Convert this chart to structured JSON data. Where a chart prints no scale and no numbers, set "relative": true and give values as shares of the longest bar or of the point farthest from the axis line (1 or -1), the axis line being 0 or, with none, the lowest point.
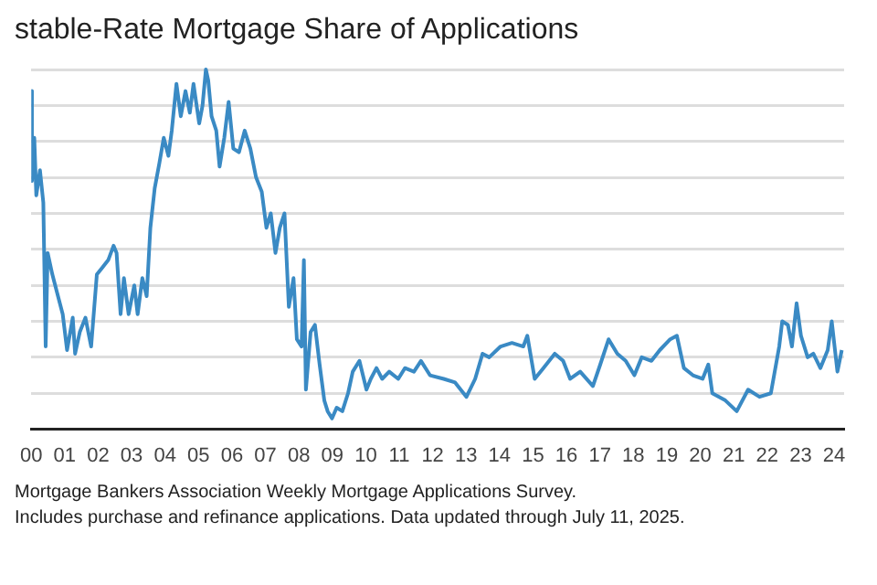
{
  "chart_data": {
    "type": "line",
    "title": "stable-Rate Mortgage Share of Applications",
    "relative": true,
    "grid": "y",
    "marker": "none",
    "line_style": "solid",
    "xlim": [
      2000,
      2024.3
    ],
    "xticks": [
      {
        "value": 2000,
        "label": "00"
      },
      {
        "value": 2001,
        "label": "01"
      },
      {
        "value": 2002,
        "label": "02"
      },
      {
        "value": 2003,
        "label": "03"
      },
      {
        "value": 2004,
        "label": "04"
      },
      {
        "value": 2005,
        "label": "05"
      },
      {
        "value": 2006,
        "label": "06"
      },
      {
        "value": 2007,
        "label": "07"
      },
      {
        "value": 2008,
        "label": "08"
      },
      {
        "value": 2009,
        "label": "09"
      },
      {
        "value": 2010,
        "label": "10"
      },
      {
        "value": 2011,
        "label": "11"
      },
      {
        "value": 2012,
        "label": "12"
      },
      {
        "value": 2013,
        "label": "13"
      },
      {
        "value": 2014,
        "label": "14"
      },
      {
        "value": 2015,
        "label": "15"
      },
      {
        "value": 2016,
        "label": "16"
      },
      {
        "value": 2017,
        "label": "17"
      },
      {
        "value": 2018,
        "label": "18"
      },
      {
        "value": 2019,
        "label": "19"
      },
      {
        "value": 2020,
        "label": "20"
      },
      {
        "value": 2021,
        "label": "21"
      },
      {
        "value": 2022,
        "label": "22"
      },
      {
        "value": 2023,
        "label": "23"
      },
      {
        "value": 2024,
        "label": "24"
      }
    ],
    "x": [
      2000.0,
      2000.02,
      2000.09,
      2000.15,
      2000.26,
      2000.36,
      2000.43,
      2000.49,
      2000.63,
      2000.77,
      2000.94,
      2001.07,
      2001.24,
      2001.31,
      2001.45,
      2001.62,
      2001.79,
      2001.96,
      2002.13,
      2002.3,
      2002.46,
      2002.55,
      2002.67,
      2002.77,
      2002.91,
      2003.08,
      2003.18,
      2003.32,
      2003.45,
      2003.56,
      2003.69,
      2003.83,
      2003.96,
      2004.1,
      2004.2,
      2004.34,
      2004.47,
      2004.61,
      2004.74,
      2004.85,
      2005.02,
      2005.12,
      2005.22,
      2005.29,
      2005.39,
      2005.53,
      2005.63,
      2005.77,
      2005.9,
      2006.04,
      2006.21,
      2006.38,
      2006.55,
      2006.72,
      2006.89,
      2007.03,
      2007.16,
      2007.3,
      2007.43,
      2007.57,
      2007.7,
      2007.84,
      2007.94,
      2008.08,
      2008.15,
      2008.21,
      2008.35,
      2008.48,
      2008.62,
      2008.76,
      2008.86,
      2008.99,
      2009.13,
      2009.3,
      2009.47,
      2009.61,
      2009.81,
      2010.02,
      2010.15,
      2010.32,
      2010.49,
      2010.7,
      2010.97,
      2011.17,
      2011.44,
      2011.65,
      2011.92,
      2012.33,
      2012.67,
      2013.01,
      2013.27,
      2013.49,
      2013.69,
      2014.03,
      2014.37,
      2014.71,
      2014.83,
      2015.05,
      2015.31,
      2015.65,
      2015.9,
      2016.11,
      2016.41,
      2016.79,
      2017.01,
      2017.26,
      2017.52,
      2017.77,
      2018.03,
      2018.25,
      2018.54,
      2018.79,
      2019.1,
      2019.3,
      2019.51,
      2019.78,
      2020.07,
      2020.24,
      2020.36,
      2020.75,
      2021.09,
      2021.43,
      2021.77,
      2022.11,
      2022.36,
      2022.45,
      2022.62,
      2022.74,
      2022.88,
      2023.01,
      2023.21,
      2023.38,
      2023.59,
      2023.81,
      2023.93,
      2024.1,
      2024.23
    ],
    "series": [
      {
        "color": "#3a8ac4",
        "values": [
          0.94,
          0.69,
          0.81,
          0.65,
          0.72,
          0.63,
          0.23,
          0.49,
          0.43,
          0.38,
          0.32,
          0.22,
          0.31,
          0.21,
          0.27,
          0.31,
          0.23,
          0.43,
          0.45,
          0.47,
          0.51,
          0.49,
          0.32,
          0.42,
          0.32,
          0.4,
          0.32,
          0.42,
          0.37,
          0.56,
          0.67,
          0.74,
          0.81,
          0.76,
          0.83,
          0.96,
          0.87,
          0.94,
          0.88,
          0.96,
          0.85,
          0.9,
          1.0,
          0.97,
          0.87,
          0.83,
          0.73,
          0.81,
          0.91,
          0.78,
          0.77,
          0.83,
          0.78,
          0.7,
          0.66,
          0.56,
          0.6,
          0.49,
          0.56,
          0.6,
          0.34,
          0.42,
          0.25,
          0.23,
          0.47,
          0.11,
          0.27,
          0.29,
          0.18,
          0.08,
          0.05,
          0.03,
          0.06,
          0.05,
          0.1,
          0.16,
          0.19,
          0.11,
          0.14,
          0.17,
          0.14,
          0.16,
          0.14,
          0.17,
          0.16,
          0.19,
          0.15,
          0.14,
          0.13,
          0.09,
          0.14,
          0.21,
          0.2,
          0.23,
          0.24,
          0.23,
          0.26,
          0.14,
          0.17,
          0.21,
          0.19,
          0.14,
          0.16,
          0.12,
          0.18,
          0.25,
          0.21,
          0.19,
          0.15,
          0.2,
          0.19,
          0.22,
          0.25,
          0.26,
          0.17,
          0.15,
          0.14,
          0.18,
          0.1,
          0.08,
          0.05,
          0.11,
          0.09,
          0.1,
          0.23,
          0.3,
          0.29,
          0.23,
          0.35,
          0.26,
          0.2,
          0.21,
          0.17,
          0.22,
          0.3,
          0.16,
          0.22
        ]
      }
    ],
    "annotations": [
      "Mortgage Bankers Association Weekly Mortgage Applications Survey.",
      "Includes purchase and refinance applications. Data updated through July 11, 2025."
    ]
  }
}
